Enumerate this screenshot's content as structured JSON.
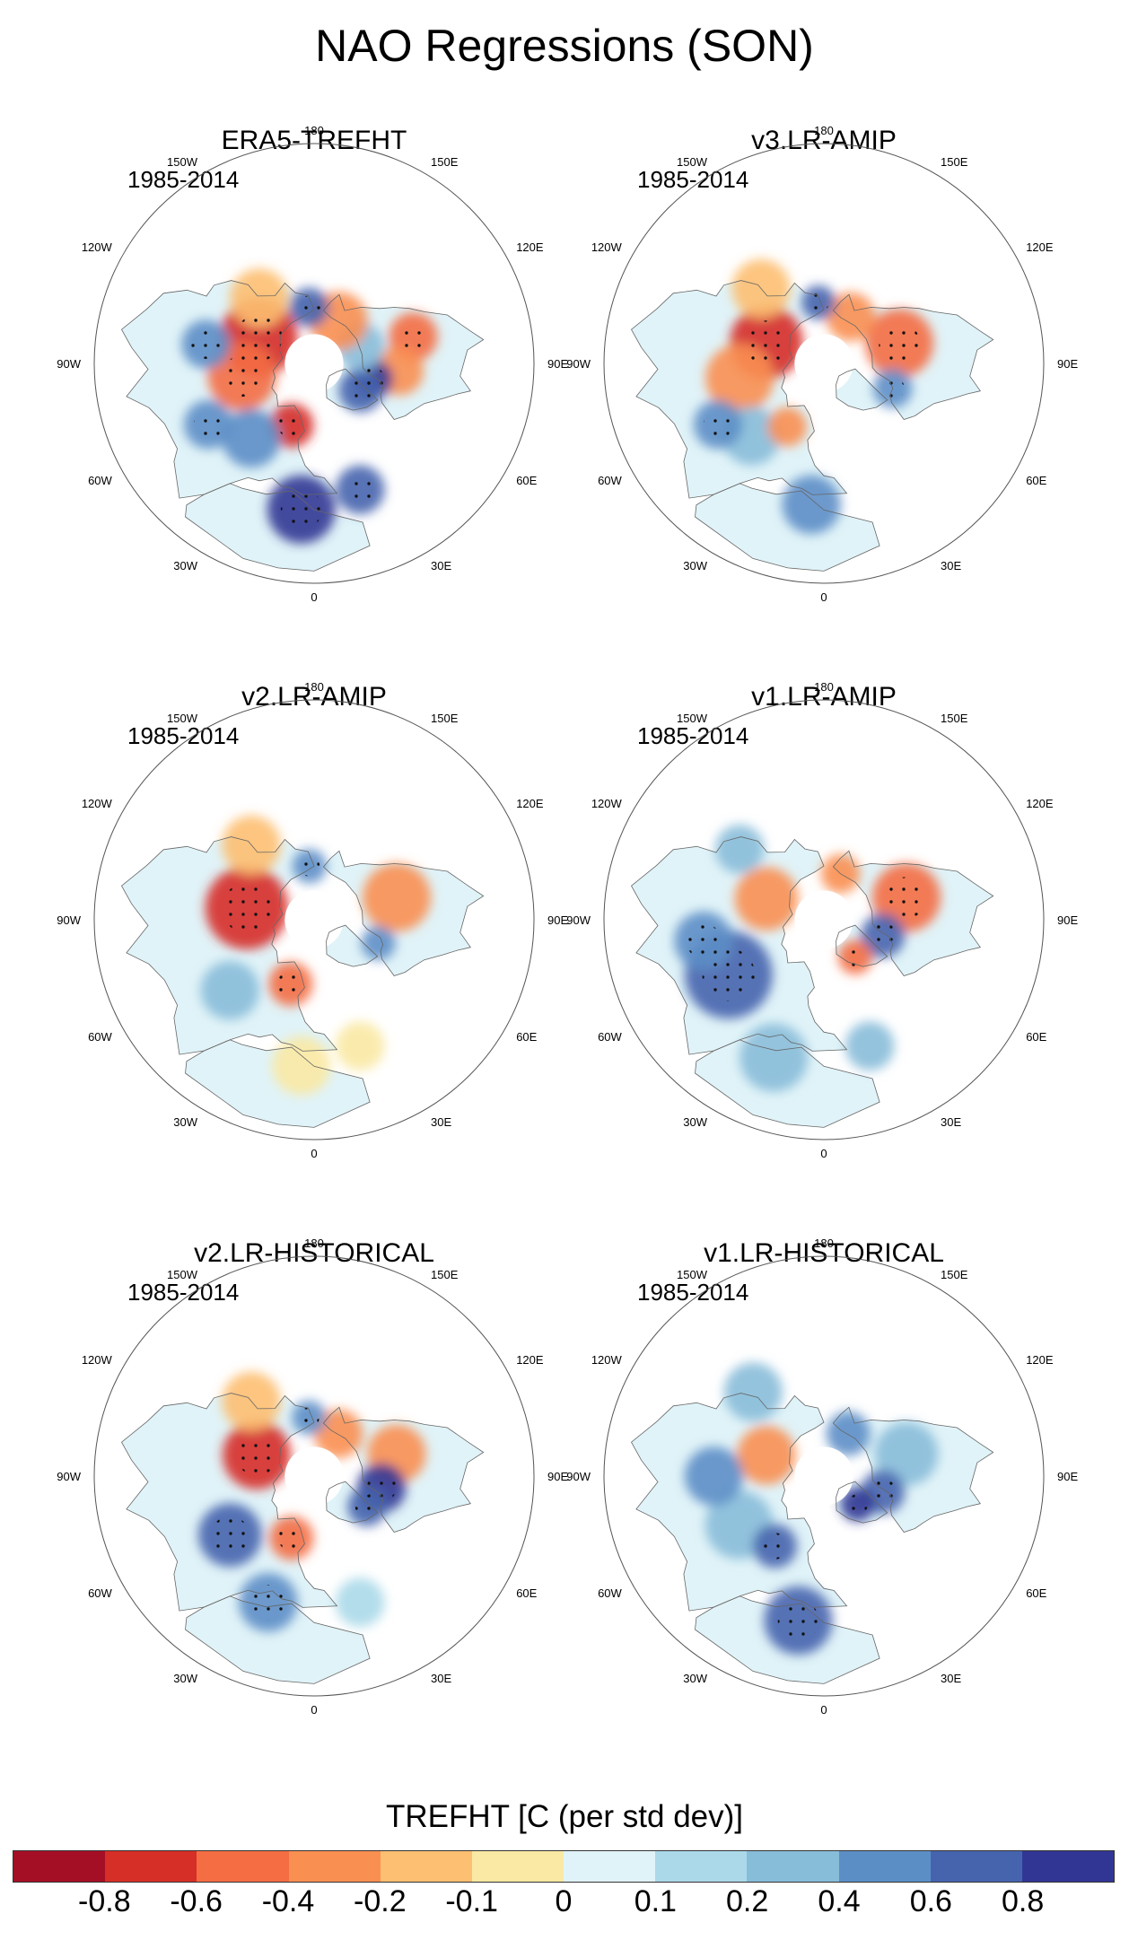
{
  "title": "NAO Regressions (SON)",
  "period": "1985-2014",
  "longitude_labels": [
    "180",
    "150E",
    "120E",
    "90E",
    "60E",
    "30E",
    "0",
    "30W",
    "60W",
    "90W",
    "120W",
    "150W"
  ],
  "panels": [
    {
      "title": "ERA5-TREFHT",
      "period": "1985-2014",
      "blobs": [
        {
          "lon": 255,
          "lat": 48,
          "r": 10,
          "v": 0.5
        },
        {
          "lon": 275,
          "lat": 55,
          "r": 10,
          "v": 0.4
        },
        {
          "lon": 285,
          "lat": 65,
          "r": 8,
          "v": -0.8
        },
        {
          "lon": 300,
          "lat": 68,
          "r": 9,
          "v": -0.7
        },
        {
          "lon": 250,
          "lat": 70,
          "r": 10,
          "v": -0.3
        },
        {
          "lon": 210,
          "lat": 70,
          "r": 12,
          "v": 0.3
        },
        {
          "lon": 175,
          "lat": 67,
          "r": 8,
          "v": -0.6
        },
        {
          "lon": 115,
          "lat": 65,
          "r": 16,
          "v": 0.8
        },
        {
          "lon": 80,
          "lat": 60,
          "r": 14,
          "v": 0.6
        },
        {
          "lon": 20,
          "lat": 63,
          "r": 9,
          "v": 0.7
        },
        {
          "lon": 40,
          "lat": 50,
          "r": 12,
          "v": -0.4
        },
        {
          "lon": 60,
          "lat": 40,
          "r": 10,
          "v": -0.5
        },
        {
          "lon": 5,
          "lat": 30,
          "r": 14,
          "v": -0.8
        },
        {
          "lon": 340,
          "lat": 35,
          "r": 10,
          "v": -0.6
        },
        {
          "lon": 100,
          "lat": 45,
          "r": 10,
          "v": -0.5
        },
        {
          "lon": 140,
          "lat": 55,
          "r": 12,
          "v": 0.2
        }
      ]
    },
    {
      "title": "v3.LR-AMIP",
      "period": "1985-2014",
      "blobs": [
        {
          "lon": 255,
          "lat": 58,
          "r": 14,
          "v": 0.6
        },
        {
          "lon": 290,
          "lat": 60,
          "r": 8,
          "v": -0.5
        },
        {
          "lon": 210,
          "lat": 68,
          "r": 10,
          "v": 0.3
        },
        {
          "lon": 175,
          "lat": 65,
          "r": 7,
          "v": -0.6
        },
        {
          "lon": 110,
          "lat": 65,
          "r": 15,
          "v": 0.7
        },
        {
          "lon": 80,
          "lat": 55,
          "r": 14,
          "v": 0.3
        },
        {
          "lon": 45,
          "lat": 48,
          "r": 12,
          "v": -0.3
        },
        {
          "lon": 5,
          "lat": 32,
          "r": 12,
          "v": -0.4
        },
        {
          "lon": 60,
          "lat": 40,
          "r": 10,
          "v": -0.5
        },
        {
          "lon": 140,
          "lat": 50,
          "r": 12,
          "v": 0.2
        },
        {
          "lon": 30,
          "lat": 60,
          "r": 8,
          "v": 0.3
        }
      ]
    },
    {
      "title": "v2.LR-AMIP",
      "period": "1985-2014",
      "blobs": [
        {
          "lon": 255,
          "lat": 55,
          "r": 14,
          "v": 0.4
        },
        {
          "lon": 290,
          "lat": 62,
          "r": 7,
          "v": -0.4
        },
        {
          "lon": 175,
          "lat": 68,
          "r": 7,
          "v": -0.5
        },
        {
          "lon": 100,
          "lat": 62,
          "r": 17,
          "v": 0.8
        },
        {
          "lon": 20,
          "lat": 62,
          "r": 9,
          "v": 0.5
        },
        {
          "lon": 50,
          "lat": 45,
          "r": 12,
          "v": -0.3
        },
        {
          "lon": 5,
          "lat": 30,
          "r": 12,
          "v": 0.1
        },
        {
          "lon": 340,
          "lat": 35,
          "r": 10,
          "v": 0.1
        },
        {
          "lon": 140,
          "lat": 50,
          "r": 12,
          "v": 0.2
        }
      ]
    },
    {
      "title": "v1.LR-AMIP",
      "period": "1985-2014",
      "blobs": [
        {
          "lon": 255,
          "lat": 55,
          "r": 14,
          "v": 0.6
        },
        {
          "lon": 285,
          "lat": 65,
          "r": 9,
          "v": -0.6
        },
        {
          "lon": 320,
          "lat": 70,
          "r": 7,
          "v": 0.6
        },
        {
          "lon": 200,
          "lat": 70,
          "r": 8,
          "v": 0.3
        },
        {
          "lon": 110,
          "lat": 65,
          "r": 13,
          "v": 0.3
        },
        {
          "lon": 60,
          "lat": 45,
          "r": 18,
          "v": -0.7
        },
        {
          "lon": 80,
          "lat": 40,
          "r": 12,
          "v": -0.5
        },
        {
          "lon": 20,
          "lat": 30,
          "r": 14,
          "v": -0.3
        },
        {
          "lon": 340,
          "lat": 35,
          "r": 10,
          "v": -0.2
        },
        {
          "lon": 130,
          "lat": 45,
          "r": 10,
          "v": -0.2
        }
      ]
    },
    {
      "title": "v2.LR-HISTORICAL",
      "period": "1985-2014",
      "blobs": [
        {
          "lon": 255,
          "lat": 55,
          "r": 12,
          "v": 0.4
        },
        {
          "lon": 280,
          "lat": 62,
          "r": 10,
          "v": -0.8
        },
        {
          "lon": 300,
          "lat": 65,
          "r": 8,
          "v": -0.6
        },
        {
          "lon": 210,
          "lat": 70,
          "r": 10,
          "v": 0.3
        },
        {
          "lon": 175,
          "lat": 66,
          "r": 7,
          "v": -0.5
        },
        {
          "lon": 110,
          "lat": 65,
          "r": 14,
          "v": 0.8
        },
        {
          "lon": 20,
          "lat": 63,
          "r": 9,
          "v": 0.6
        },
        {
          "lon": 55,
          "lat": 48,
          "r": 13,
          "v": -0.6
        },
        {
          "lon": 20,
          "lat": 35,
          "r": 12,
          "v": -0.5
        },
        {
          "lon": 340,
          "lat": 35,
          "r": 10,
          "v": -0.1
        },
        {
          "lon": 140,
          "lat": 50,
          "r": 12,
          "v": 0.2
        }
      ]
    },
    {
      "title": "v1.LR-HISTORICAL",
      "period": "1985-2014",
      "blobs": [
        {
          "lon": 255,
          "lat": 55,
          "r": 13,
          "v": -0.3
        },
        {
          "lon": 285,
          "lat": 65,
          "r": 9,
          "v": -0.7
        },
        {
          "lon": 310,
          "lat": 72,
          "r": 7,
          "v": -0.8
        },
        {
          "lon": 210,
          "lat": 70,
          "r": 9,
          "v": -0.4
        },
        {
          "lon": 110,
          "lat": 65,
          "r": 12,
          "v": 0.3
        },
        {
          "lon": 60,
          "lat": 50,
          "r": 14,
          "v": -0.3
        },
        {
          "lon": 35,
          "lat": 55,
          "r": 9,
          "v": -0.7
        },
        {
          "lon": 10,
          "lat": 30,
          "r": 14,
          "v": -0.7
        },
        {
          "lon": 90,
          "lat": 45,
          "r": 12,
          "v": -0.4
        },
        {
          "lon": 140,
          "lat": 45,
          "r": 12,
          "v": -0.3
        }
      ]
    }
  ],
  "colorbar": {
    "title": "TREFHT [C (per std dev)]",
    "labels": [
      "-0.8",
      "-0.6",
      "-0.4",
      "-0.2",
      "-0.1",
      "0",
      "0.1",
      "0.2",
      "0.4",
      "0.6",
      "0.8"
    ],
    "colors": [
      "#a50f26",
      "#d62f27",
      "#f46d43",
      "#fa8f52",
      "#fdbf71",
      "#f9e9a4",
      "#e0f3f8",
      "#abd9e9",
      "#88bdd9",
      "#5c8ec6",
      "#4664ae",
      "#313694"
    ],
    "bounds": [
      -1.0,
      -0.8,
      -0.6,
      -0.4,
      -0.2,
      -0.1,
      0,
      0.1,
      0.2,
      0.4,
      0.6,
      0.8,
      1.0
    ]
  }
}
